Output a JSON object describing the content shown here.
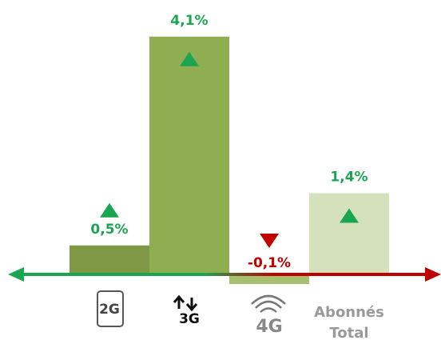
{
  "chart_data": {
    "type": "bar",
    "categories": [
      "2G",
      "3G",
      "4G",
      "Abonnés Total"
    ],
    "values": [
      0.5,
      4.1,
      -0.1,
      1.4
    ],
    "value_labels": [
      "0,5%",
      "4,1%",
      "-0,1%",
      "1,4%"
    ],
    "colors": [
      "#7f9845",
      "#8fae52",
      "#a7c06f",
      "#d4e1bb"
    ],
    "up_color": "#1aa650",
    "down_color": "#c00000"
  }
}
